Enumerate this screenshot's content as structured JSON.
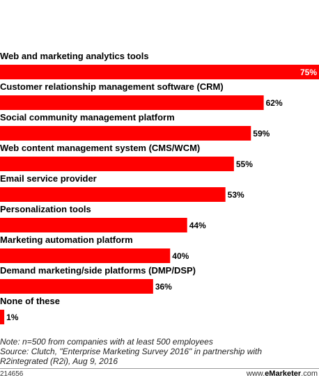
{
  "chart_data": {
    "type": "bar",
    "orientation": "horizontal",
    "categories": [
      "Web and marketing analytics tools",
      "Customer relationship management software (CRM)",
      "Social community management platform",
      "Web content management system (CMS/WCM)",
      "Email service provider",
      "Personalization tools",
      "Marketing automation platform",
      "Demand marketing/side platforms (DMP/DSP)",
      "None of these"
    ],
    "values": [
      75,
      62,
      59,
      55,
      53,
      44,
      40,
      36,
      1
    ],
    "value_labels": [
      "75%",
      "62%",
      "59%",
      "55%",
      "53%",
      "44%",
      "40%",
      "36%",
      "1%"
    ],
    "xlim": [
      0,
      75
    ],
    "bar_color": "#ff0000",
    "inside_label_color": "#ffffff",
    "outside_label_color": "#000000",
    "grid": false
  },
  "notes": {
    "note": "Note: n=500 from companies with at least 500 employees",
    "source_line_1": "Source: Clutch, \"Enterprise Marketing Survey 2016\" in partnership with",
    "source_line_2": "R2integrated (R2i), Aug 9, 2016"
  },
  "footer": {
    "chart_id": "214656",
    "site_prefix": "www.",
    "site_brand": "eMarketer",
    "site_suffix": ".com"
  }
}
